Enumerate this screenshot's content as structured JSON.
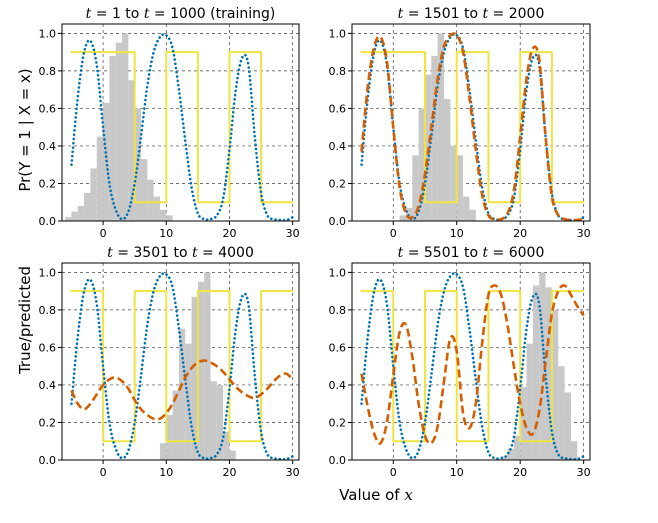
{
  "figure": {
    "xlabel_prefix": "Value of ",
    "xlabel_var": "x",
    "ylabel_top": "Pr(Y = 1 | X = x)",
    "ylabel_bottom": "True/predicted"
  },
  "colors": {
    "true": "#f0e442",
    "model": "#0072b2",
    "predicted": "#d55e00",
    "hist": "#c8c8c8"
  },
  "chart_data": [
    {
      "type": "line",
      "title_var1": "t",
      "title_mid": " = 1 to ",
      "title_var2": "t",
      "title_end": " = 1000 (training)",
      "xlim": [
        -6.5,
        31
      ],
      "ylim": [
        0,
        1.05
      ],
      "xticks": [
        0,
        10,
        20,
        30
      ],
      "yticks": [
        0.0,
        0.2,
        0.4,
        0.6,
        0.8,
        1.0
      ],
      "show_xticklabels": true,
      "show_yticklabels": true,
      "histogram": {
        "bin_edges": [
          -6,
          -5,
          -4,
          -3,
          -2,
          -1,
          0,
          1,
          2,
          3,
          4,
          5,
          6,
          7,
          8,
          9,
          10,
          11
        ],
        "heights": [
          0.02,
          0.05,
          0.08,
          0.15,
          0.28,
          0.45,
          0.63,
          0.88,
          0.95,
          1.0,
          0.75,
          0.6,
          0.33,
          0.22,
          0.13,
          0.06,
          0.03
        ]
      },
      "series": [
        {
          "name": "true",
          "style": "step",
          "x": [
            -5,
            5,
            5,
            10,
            10,
            15,
            15,
            20,
            20,
            25,
            25,
            30
          ],
          "y": [
            0.9,
            0.9,
            0.1,
            0.1,
            0.9,
            0.9,
            0.1,
            0.1,
            0.9,
            0.9,
            0.1,
            0.1
          ]
        },
        {
          "name": "model",
          "style": "dotted",
          "x": [
            -5,
            -4,
            -3,
            -2,
            -1,
            0,
            1,
            2,
            3,
            4,
            5,
            6,
            7,
            8,
            9,
            10,
            11,
            12,
            13,
            14,
            15,
            16,
            17,
            18,
            19,
            20,
            21,
            22,
            23,
            24,
            25,
            26,
            27,
            28,
            29,
            30
          ],
          "y": [
            0.3,
            0.66,
            0.9,
            0.96,
            0.83,
            0.5,
            0.2,
            0.06,
            0.01,
            0.05,
            0.2,
            0.45,
            0.72,
            0.9,
            0.98,
            0.99,
            0.92,
            0.7,
            0.43,
            0.18,
            0.04,
            0.01,
            0.01,
            0.03,
            0.12,
            0.38,
            0.7,
            0.87,
            0.83,
            0.45,
            0.15,
            0.03,
            0.01,
            0.005,
            0.005,
            0.02
          ]
        }
      ]
    },
    {
      "type": "line",
      "title_var1": "t",
      "title_mid": " = 1501 to ",
      "title_var2": "t",
      "title_end": " = 2000",
      "xlim": [
        -6.5,
        31
      ],
      "ylim": [
        0,
        1.05
      ],
      "xticks": [
        0,
        10,
        20,
        30
      ],
      "yticks": [
        0.0,
        0.2,
        0.4,
        0.6,
        0.8,
        1.0
      ],
      "show_xticklabels": true,
      "show_yticklabels": true,
      "histogram": {
        "bin_edges": [
          1,
          2,
          3,
          4,
          5,
          6,
          7,
          8,
          9,
          10,
          11,
          12,
          13
        ],
        "heights": [
          0.03,
          0.07,
          0.35,
          0.6,
          0.78,
          0.88,
          1.0,
          0.65,
          0.4,
          0.35,
          0.13,
          0.06
        ]
      },
      "series": [
        {
          "name": "true",
          "style": "step",
          "x": [
            -5,
            5,
            5,
            10,
            10,
            15,
            15,
            20,
            20,
            25,
            25,
            30
          ],
          "y": [
            0.9,
            0.9,
            0.1,
            0.1,
            0.9,
            0.9,
            0.1,
            0.1,
            0.9,
            0.9,
            0.1,
            0.1
          ]
        },
        {
          "name": "model",
          "style": "dotted",
          "x": [
            -5,
            -4,
            -3,
            -2,
            -1,
            0,
            1,
            2,
            3,
            4,
            5,
            6,
            7,
            8,
            9,
            10,
            11,
            12,
            13,
            14,
            15,
            16,
            17,
            18,
            19,
            20,
            21,
            22,
            23,
            24,
            25,
            26,
            27,
            28,
            29,
            30
          ],
          "y": [
            0.3,
            0.66,
            0.9,
            0.96,
            0.83,
            0.5,
            0.2,
            0.06,
            0.01,
            0.05,
            0.2,
            0.45,
            0.72,
            0.9,
            0.98,
            0.99,
            0.92,
            0.7,
            0.43,
            0.18,
            0.04,
            0.01,
            0.01,
            0.03,
            0.12,
            0.38,
            0.7,
            0.87,
            0.83,
            0.45,
            0.15,
            0.03,
            0.01,
            0.005,
            0.005,
            0.02
          ]
        },
        {
          "name": "predicted",
          "style": "dashed",
          "x": [
            -5,
            -4,
            -3,
            -2,
            -1,
            0,
            1,
            2,
            3,
            4,
            5,
            6,
            7,
            8,
            9,
            10,
            11,
            12,
            13,
            14,
            15,
            16,
            17,
            18,
            19,
            20,
            21,
            22,
            23,
            24,
            25,
            26,
            27,
            28,
            29,
            30
          ],
          "y": [
            0.37,
            0.72,
            0.93,
            0.98,
            0.85,
            0.5,
            0.18,
            0.04,
            0.02,
            0.08,
            0.25,
            0.5,
            0.76,
            0.93,
            0.99,
            0.99,
            0.9,
            0.66,
            0.38,
            0.14,
            0.03,
            0.01,
            0.01,
            0.04,
            0.16,
            0.45,
            0.76,
            0.92,
            0.86,
            0.45,
            0.13,
            0.03,
            0.01,
            0.005,
            0.005,
            0.01
          ]
        }
      ]
    },
    {
      "type": "line",
      "title_var1": "t",
      "title_mid": " = 3501 to ",
      "title_var2": "t",
      "title_end": " = 4000",
      "xlim": [
        -6.5,
        31
      ],
      "ylim": [
        0,
        1.05
      ],
      "xticks": [
        0,
        10,
        20,
        30
      ],
      "yticks": [
        0.0,
        0.2,
        0.4,
        0.6,
        0.8,
        1.0
      ],
      "show_xticklabels": true,
      "show_yticklabels": true,
      "histogram": {
        "bin_edges": [
          9,
          10,
          11,
          12,
          13,
          14,
          15,
          16,
          17,
          18,
          19,
          20,
          21
        ],
        "heights": [
          0.09,
          0.24,
          0.37,
          0.7,
          0.62,
          0.87,
          0.95,
          1.0,
          0.42,
          0.4,
          0.15,
          0.05
        ]
      },
      "series": [
        {
          "name": "true",
          "style": "step",
          "x": [
            -5,
            0,
            0,
            5,
            5,
            10,
            10,
            15,
            15,
            20,
            20,
            25,
            25,
            30
          ],
          "y": [
            0.9,
            0.9,
            0.1,
            0.1,
            0.9,
            0.9,
            0.1,
            0.1,
            0.9,
            0.9,
            0.1,
            0.1,
            0.9,
            0.9
          ]
        },
        {
          "name": "model",
          "style": "dotted",
          "x": [
            -5,
            -4,
            -3,
            -2,
            -1,
            0,
            1,
            2,
            3,
            4,
            5,
            6,
            7,
            8,
            9,
            10,
            11,
            12,
            13,
            14,
            15,
            16,
            17,
            18,
            19,
            20,
            21,
            22,
            23,
            24,
            25,
            26,
            27,
            28,
            29,
            30
          ],
          "y": [
            0.3,
            0.66,
            0.9,
            0.96,
            0.83,
            0.5,
            0.2,
            0.06,
            0.01,
            0.05,
            0.2,
            0.45,
            0.72,
            0.9,
            0.98,
            0.99,
            0.92,
            0.7,
            0.43,
            0.18,
            0.04,
            0.01,
            0.01,
            0.03,
            0.12,
            0.38,
            0.7,
            0.87,
            0.83,
            0.45,
            0.15,
            0.03,
            0.01,
            0.005,
            0.005,
            0.02
          ]
        },
        {
          "name": "predicted",
          "style": "dashed",
          "x": [
            -5,
            -4,
            -3,
            -2,
            -1,
            0,
            1,
            2,
            3,
            4,
            5,
            6,
            7,
            8,
            9,
            10,
            11,
            12,
            13,
            14,
            15,
            16,
            17,
            18,
            19,
            20,
            21,
            22,
            23,
            24,
            25,
            26,
            27,
            28,
            29,
            30
          ],
          "y": [
            0.37,
            0.3,
            0.27,
            0.3,
            0.35,
            0.4,
            0.43,
            0.44,
            0.42,
            0.38,
            0.32,
            0.27,
            0.24,
            0.22,
            0.22,
            0.25,
            0.3,
            0.37,
            0.44,
            0.49,
            0.52,
            0.53,
            0.52,
            0.5,
            0.47,
            0.43,
            0.39,
            0.36,
            0.34,
            0.33,
            0.35,
            0.38,
            0.42,
            0.45,
            0.46,
            0.43
          ]
        }
      ]
    },
    {
      "type": "line",
      "title_var1": "t",
      "title_mid": " = 5501 to ",
      "title_var2": "t",
      "title_end": " = 6000",
      "xlim": [
        -6.5,
        31
      ],
      "ylim": [
        0,
        1.05
      ],
      "xticks": [
        0,
        10,
        20,
        30
      ],
      "yticks": [
        0.0,
        0.2,
        0.4,
        0.6,
        0.8,
        1.0
      ],
      "show_xticklabels": true,
      "show_yticklabels": true,
      "histogram": {
        "bin_edges": [
          17,
          18,
          19,
          20,
          21,
          22,
          23,
          24,
          25,
          26,
          27,
          28,
          29
        ],
        "heights": [
          0.02,
          0.06,
          0.13,
          0.39,
          0.62,
          0.93,
          1.0,
          0.92,
          0.8,
          0.5,
          0.36,
          0.1
        ]
      },
      "series": [
        {
          "name": "true",
          "style": "step",
          "x": [
            -5,
            0,
            0,
            5,
            5,
            10,
            10,
            15,
            15,
            20,
            20,
            25,
            25,
            30
          ],
          "y": [
            0.9,
            0.9,
            0.1,
            0.1,
            0.9,
            0.9,
            0.1,
            0.1,
            0.9,
            0.9,
            0.1,
            0.1,
            0.9,
            0.9
          ]
        },
        {
          "name": "model",
          "style": "dotted",
          "x": [
            -5,
            -4,
            -3,
            -2,
            -1,
            0,
            1,
            2,
            3,
            4,
            5,
            6,
            7,
            8,
            9,
            10,
            11,
            12,
            13,
            14,
            15,
            16,
            17,
            18,
            19,
            20,
            21,
            22,
            23,
            24,
            25,
            26,
            27,
            28,
            29,
            30
          ],
          "y": [
            0.3,
            0.66,
            0.9,
            0.96,
            0.83,
            0.5,
            0.2,
            0.06,
            0.01,
            0.05,
            0.2,
            0.45,
            0.72,
            0.9,
            0.98,
            0.99,
            0.92,
            0.7,
            0.43,
            0.18,
            0.04,
            0.01,
            0.01,
            0.03,
            0.12,
            0.38,
            0.7,
            0.87,
            0.83,
            0.45,
            0.15,
            0.03,
            0.01,
            0.005,
            0.005,
            0.02
          ]
        },
        {
          "name": "predicted",
          "style": "dashed",
          "x": [
            -5,
            -4,
            -3,
            -2,
            -1,
            0,
            1,
            2,
            3,
            4,
            5,
            6,
            7,
            8,
            9,
            10,
            11,
            12,
            13,
            14,
            15,
            16,
            17,
            18,
            19,
            20,
            21,
            22,
            23,
            24,
            25,
            26,
            27,
            28,
            29,
            30
          ],
          "y": [
            0.46,
            0.28,
            0.14,
            0.09,
            0.2,
            0.45,
            0.68,
            0.72,
            0.55,
            0.3,
            0.13,
            0.09,
            0.18,
            0.42,
            0.65,
            0.58,
            0.25,
            0.17,
            0.3,
            0.62,
            0.88,
            0.93,
            0.88,
            0.72,
            0.5,
            0.3,
            0.17,
            0.14,
            0.26,
            0.52,
            0.78,
            0.9,
            0.93,
            0.88,
            0.82,
            0.77
          ]
        }
      ]
    }
  ]
}
